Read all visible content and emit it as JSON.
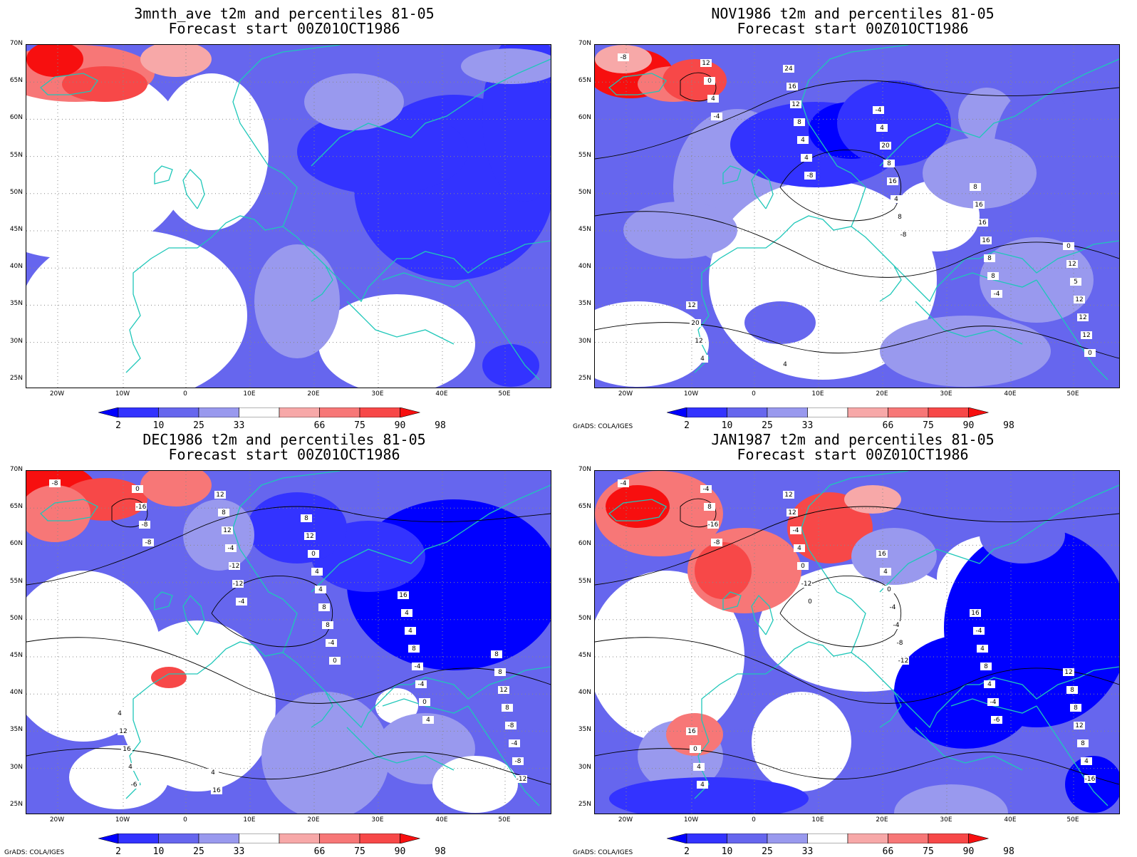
{
  "panels": [
    {
      "title1": "3mnth_ave t2m and percentiles 81-05",
      "title2": "Forecast start 00Z01OCT1986",
      "credit": ""
    },
    {
      "title1": "NOV1986 t2m and percentiles 81-05",
      "title2": "Forecast start 00Z01OCT1986",
      "credit": "GrADS: COLA/IGES"
    },
    {
      "title1": "DEC1986 t2m and percentiles 81-05",
      "title2": "Forecast start 00Z01OCT1986",
      "credit": "GrADS: COLA/IGES"
    },
    {
      "title1": "JAN1987 t2m and percentiles 81-05",
      "title2": "Forecast start 00Z01OCT1986",
      "credit": "GrADS: COLA/IGES"
    }
  ],
  "lat_labels": [
    "70N",
    "65N",
    "60N",
    "55N",
    "50N",
    "45N",
    "40N",
    "35N",
    "30N",
    "25N"
  ],
  "lon_labels": [
    "20W",
    "10W",
    "0",
    "10E",
    "20E",
    "30E",
    "40E",
    "50E"
  ],
  "colorbar": {
    "labels": [
      "2",
      "10",
      "25",
      "33",
      "66",
      "75",
      "90",
      "98"
    ],
    "colors": [
      "#0000ff",
      "#3333ff",
      "#6666ee",
      "#9999ee",
      "#ffffff",
      "#f7a8a8",
      "#f77777",
      "#f74848",
      "#f70f0f"
    ]
  },
  "contour_labels": {
    "nov": [
      "-8",
      "-4",
      "-8",
      "-8",
      "-4",
      "0",
      "4",
      "4",
      "8",
      "8",
      "12",
      "0",
      "4",
      "4",
      "8",
      "12",
      "12",
      "8",
      "16",
      "16",
      "12",
      "4",
      "12",
      "8",
      "16",
      "5",
      "12",
      "16",
      "20",
      "16",
      "12",
      "20",
      "24",
      "4",
      "8",
      "0",
      "12",
      "4",
      "-4"
    ],
    "dec": [
      "-8",
      "-8",
      "-4",
      "0",
      "4",
      "-12",
      "-8",
      "-12",
      "-4",
      "0",
      "-8",
      "-16",
      "-12",
      "8",
      "-4",
      "-4",
      "0",
      "-4",
      "8",
      "-4",
      "-8",
      "-6",
      "12",
      "4",
      "8",
      "8",
      "4",
      "8",
      "4",
      "4",
      "12",
      "16",
      "12",
      "0",
      "4",
      "8",
      "12",
      "16",
      "12",
      "16",
      "8",
      "4",
      "4",
      "8"
    ],
    "jan": [
      "-4",
      "-8",
      "0",
      "-12",
      "-6",
      "-16",
      "-16",
      "-12",
      "-8",
      "-4",
      "4",
      "8",
      "0",
      "-4",
      "4",
      "8",
      "-4",
      "4",
      "-4",
      "8",
      "12",
      "4",
      "-4",
      "0",
      "4",
      "8",
      "4",
      "12",
      "4",
      "-4",
      "8",
      "0",
      "12",
      "16",
      "16",
      "12",
      "16"
    ]
  }
}
